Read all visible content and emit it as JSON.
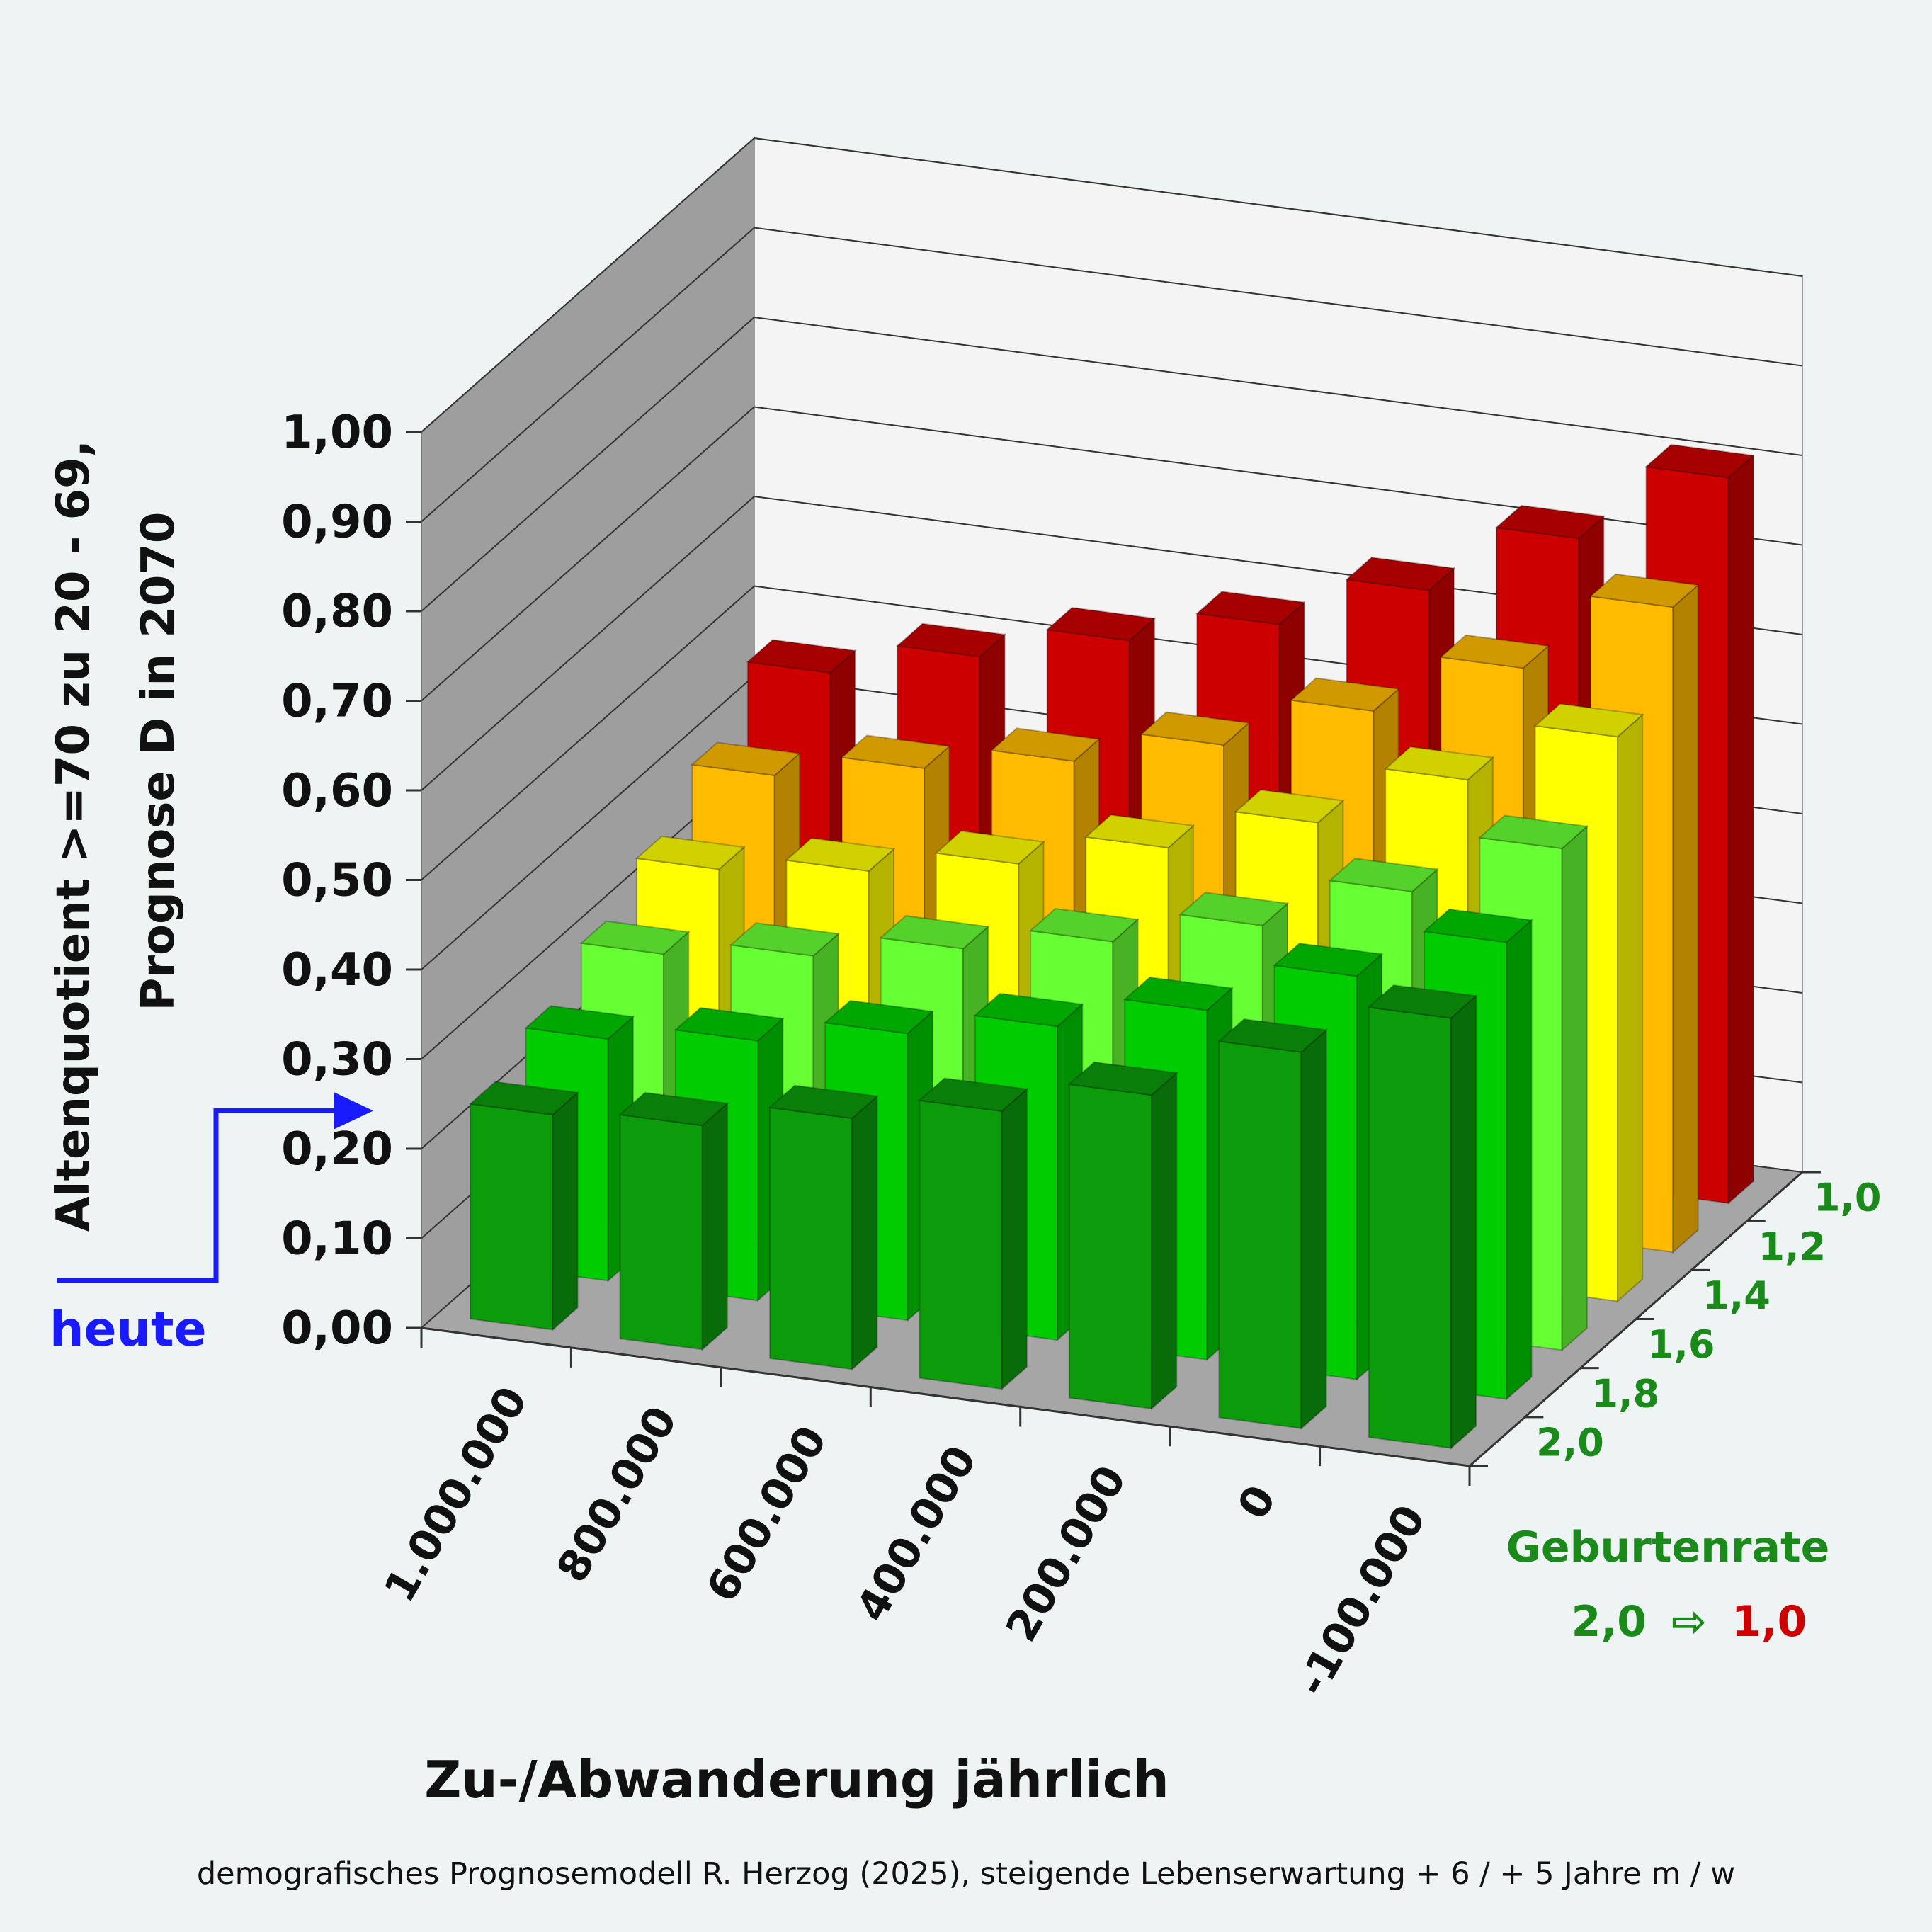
{
  "chart_data": {
    "type": "bar3d",
    "ylabel_line1": "Altenquotient  >=70 zu 20 - 69,",
    "ylabel_line2": "Prognose D in 2070",
    "xlabel": "Zu-/Abwanderung jährlich",
    "zlabel": "Geburtenrate",
    "zlabel_range_from": "2,0",
    "zlabel_arrow": "⇨",
    "zlabel_range_to": "1,0",
    "ylim": [
      0,
      1
    ],
    "yticks": [
      "0,00",
      "0,10",
      "0,20",
      "0,30",
      "0,40",
      "0,50",
      "0,60",
      "0,70",
      "0,80",
      "0,90",
      "1,00"
    ],
    "categories": [
      "1.000.000",
      "800.000",
      "600.000",
      "400.000",
      "200.000",
      "0",
      "-100.000"
    ],
    "series": [
      {
        "name": "2,0",
        "color": "#0b9b0b",
        "values": [
          0.24,
          0.25,
          0.28,
          0.31,
          0.35,
          0.42,
          0.48
        ]
      },
      {
        "name": "1,8",
        "color": "#00cc00",
        "values": [
          0.27,
          0.29,
          0.32,
          0.35,
          0.39,
          0.45,
          0.51
        ]
      },
      {
        "name": "1,6",
        "color": "#66ff33",
        "values": [
          0.31,
          0.33,
          0.36,
          0.39,
          0.43,
          0.49,
          0.56
        ]
      },
      {
        "name": "1,4",
        "color": "#ffff00",
        "values": [
          0.35,
          0.37,
          0.4,
          0.44,
          0.49,
          0.56,
          0.63
        ]
      },
      {
        "name": "1,2",
        "color": "#ffbb00",
        "values": [
          0.4,
          0.43,
          0.46,
          0.5,
          0.56,
          0.63,
          0.72
        ]
      },
      {
        "name": "1,0",
        "color": "#cc0000",
        "values": [
          0.46,
          0.5,
          0.54,
          0.58,
          0.64,
          0.72,
          0.81
        ]
      }
    ],
    "grid": true,
    "reference": {
      "label": "heute",
      "value": 0.24,
      "color": "#1a1aff"
    }
  },
  "footnote": "demografisches Prognosemodell R. Herzog (2025), steigende Lebenserwartung + 6 / + 5 Jahre m / w"
}
